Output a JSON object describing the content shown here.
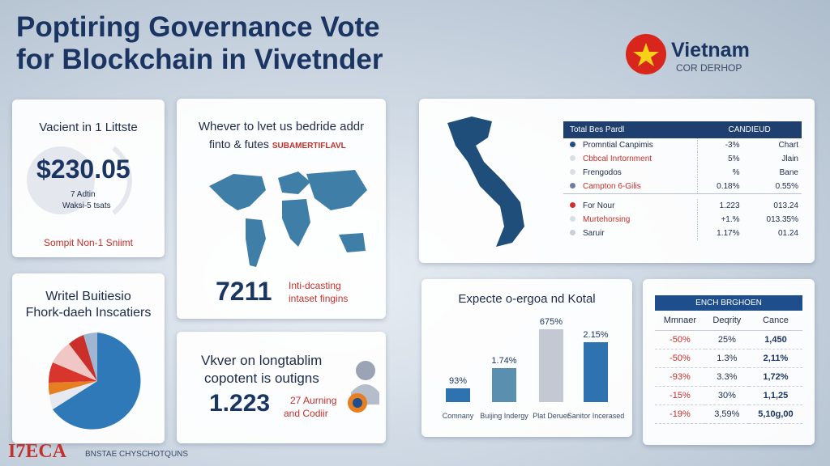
{
  "header": {
    "title_line1": "Poptiring Governance Vote",
    "title_line2": "for Blockchain in Vivetnder",
    "logo_name": "Vietnam",
    "logo_sub": "COR DERHOP"
  },
  "card_price": {
    "title": "Vacient in 1 Littste",
    "amount": "$230.05",
    "note1": "7 Adtin",
    "note2": "Waksi-5 tsats",
    "footer": "Sompit Non-1 Sniimt"
  },
  "card_world": {
    "title": "Whever to lvet us bedride addr",
    "subtitle": "finto & futes",
    "subtitle_red": "SUBAMERTIFLAVL",
    "number": "7211",
    "note_line1": "Inti-dcasting",
    "note_line2": "intaset fingins"
  },
  "card_vietnam": {
    "table": {
      "headers": [
        "Total Bes Pardl",
        "CANDIEUD"
      ],
      "group1": [
        {
          "label": "Promntial Canpimis",
          "dot": "#1f4e8c",
          "v1": "-3%",
          "v2": "Chart"
        },
        {
          "label": "Cbbcal Inrtornment",
          "dot": "#d8dde6",
          "v1": "5%",
          "v2": "Jlain"
        },
        {
          "label": "Frengodos",
          "dot": "#d8dde6",
          "v1": "%",
          "v2": "Bane"
        },
        {
          "label": "Campton 6-Gilis",
          "dot": "#6d7f9e",
          "v1": "0.18%",
          "v2": "0.55%"
        }
      ],
      "group2": [
        {
          "label": "For Nour",
          "dot": "#d0312d",
          "v1": "1.223",
          "v2": "013.24"
        },
        {
          "label": "Murtehorsing",
          "dot": "#d8dde6",
          "v1": "+1.%",
          "v2": "013.35%"
        },
        {
          "label": "Saruir",
          "dot": "#c9ced8",
          "v1": "1.17%",
          "v2": "01.24"
        }
      ]
    }
  },
  "card_pie": {
    "title_line1": "Writel Buitiesio",
    "title_line2": "Fhork-daeh Inscatiers"
  },
  "card_count": {
    "line1": "Vkver on longtablim",
    "line2": "copotent is outigns",
    "number": "1.223",
    "note_line1": "27 Aurning",
    "note_line2": "and Codiir"
  },
  "card_bars": {
    "title": "Expecte o-ergoa nd Kotal",
    "bars": [
      {
        "label": "93%",
        "category": "Comnany"
      },
      {
        "label": "1.74%",
        "category": "Buijing Indergy"
      },
      {
        "label": "675%",
        "category": "Plat Deruer"
      },
      {
        "label": "2.15%",
        "category": "Sanitor Incerased"
      }
    ]
  },
  "card_table": {
    "title": "ENCH BRGHOEN",
    "headers": [
      "Mmnaer",
      "Deqrity",
      "Cance"
    ],
    "rows": [
      [
        "-50%",
        "25%",
        "1,450"
      ],
      [
        "-50%",
        "1.3%",
        "2,11%"
      ],
      [
        "-93%",
        "3.3%",
        "1,72%"
      ],
      [
        "-15%",
        "30%",
        "1,1,25"
      ],
      [
        "-19%",
        "3,59%",
        "5,10g,00"
      ]
    ]
  },
  "footer": {
    "brand": "I7ECA",
    "text": "BNSTAE CHYSCHOTQUNS"
  }
}
